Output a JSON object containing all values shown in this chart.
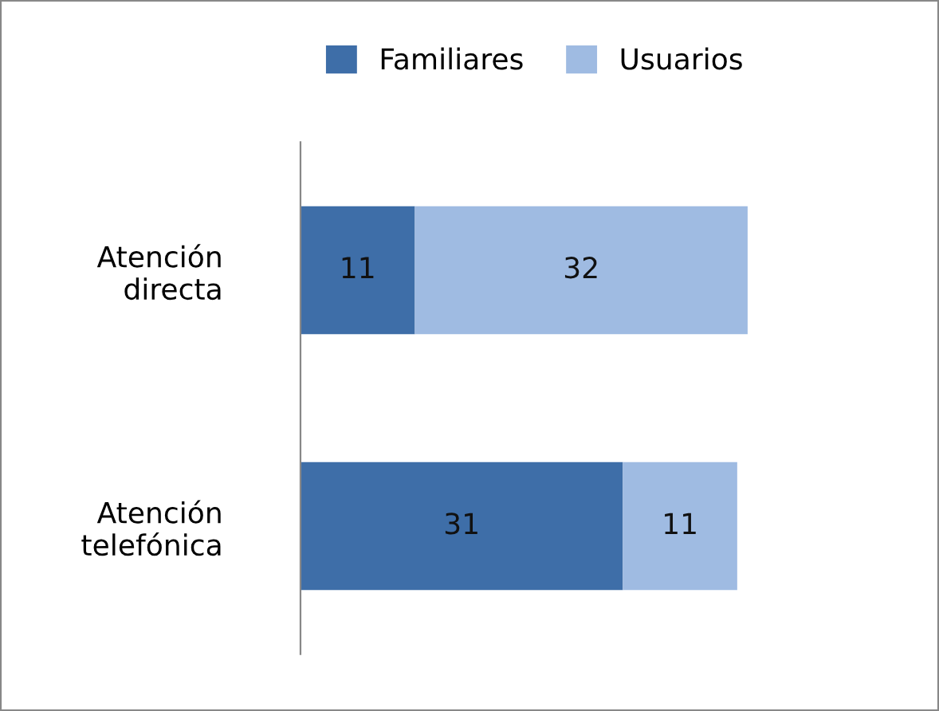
{
  "chart_data": {
    "type": "bar",
    "orientation": "horizontal",
    "stacked": true,
    "data_labels": true,
    "legend": "top",
    "grid": false,
    "categories": [
      "Atención directa",
      "Atención telefónica"
    ],
    "series": [
      {
        "name": "Familiares",
        "color": "#3e6ea8",
        "values": [
          11,
          31
        ]
      },
      {
        "name": "Usuarios",
        "color": "#9fbbe2",
        "values": [
          32,
          11
        ]
      }
    ]
  }
}
